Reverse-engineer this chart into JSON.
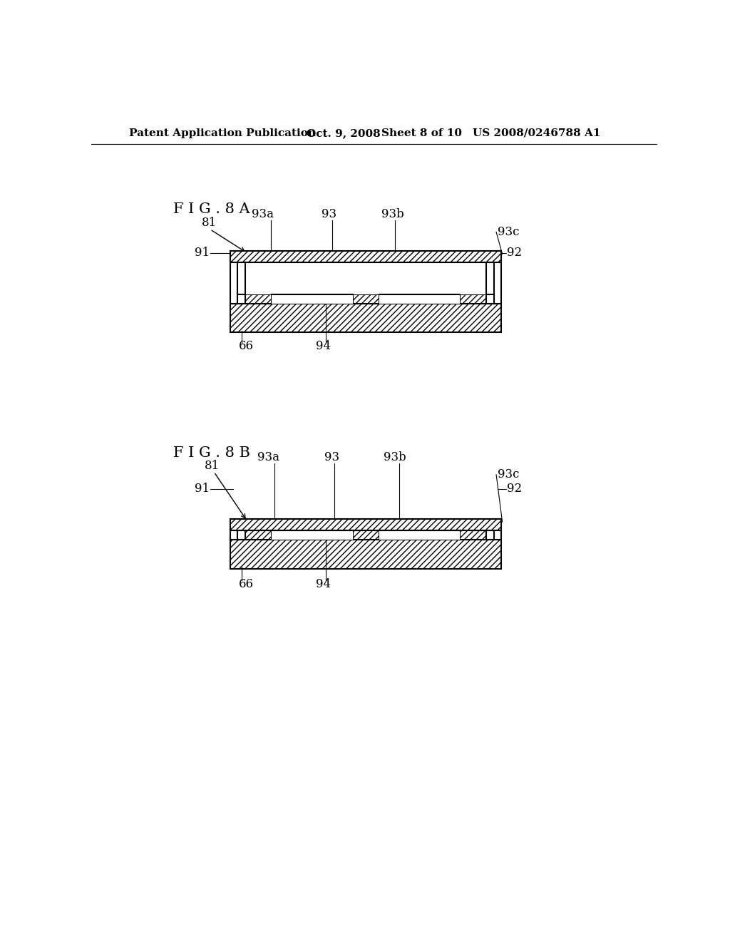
{
  "background_color": "#ffffff",
  "header_text": "Patent Application Publication",
  "header_date": "Oct. 9, 2008",
  "header_sheet": "Sheet 8 of 10",
  "header_patent": "US 2008/0246788 A1",
  "fig8a_label": "F I G . 8 A",
  "fig8b_label": "F I G . 8 B",
  "line_color": "#000000",
  "hatch_pattern": "////",
  "label_fontsize": 12,
  "header_fontsize": 11
}
